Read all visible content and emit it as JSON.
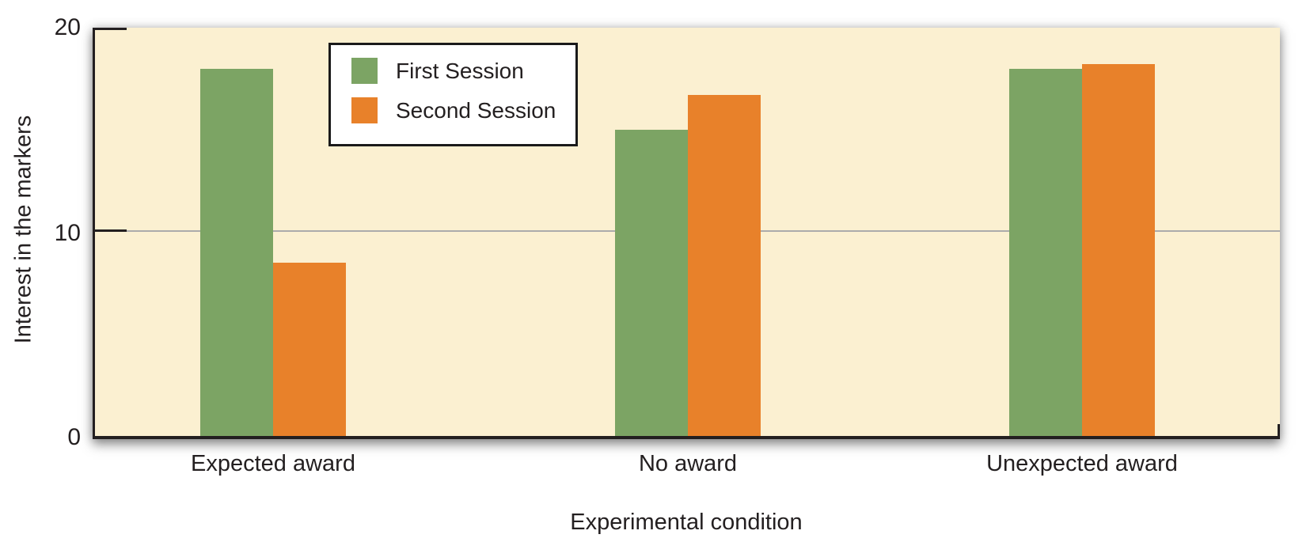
{
  "chart_data": {
    "type": "bar",
    "title": "",
    "categories": [
      "Expected award",
      "No award",
      "Unexpected award"
    ],
    "series": [
      {
        "name": "First Session",
        "color": "#7CA464",
        "values": [
          18,
          15,
          18
        ]
      },
      {
        "name": "Second Session",
        "color": "#E8812A",
        "values": [
          8.5,
          16.7,
          18.2
        ]
      }
    ],
    "xlabel": "Experimental condition",
    "ylabel": "Interest in the markers",
    "ylim": [
      0,
      20
    ],
    "yticks": [
      0,
      10,
      20
    ],
    "gridlines": [
      10
    ],
    "legend_position": "top-left-inside",
    "colors": {
      "plot_background": "#FBF0D1",
      "page_background": "#FFFFFF",
      "grid": "#ABABAB",
      "axis": "#231F20",
      "text": "#231F20",
      "legend_border": "#1A1A1A",
      "legend_background": "#FFFFFF"
    }
  }
}
